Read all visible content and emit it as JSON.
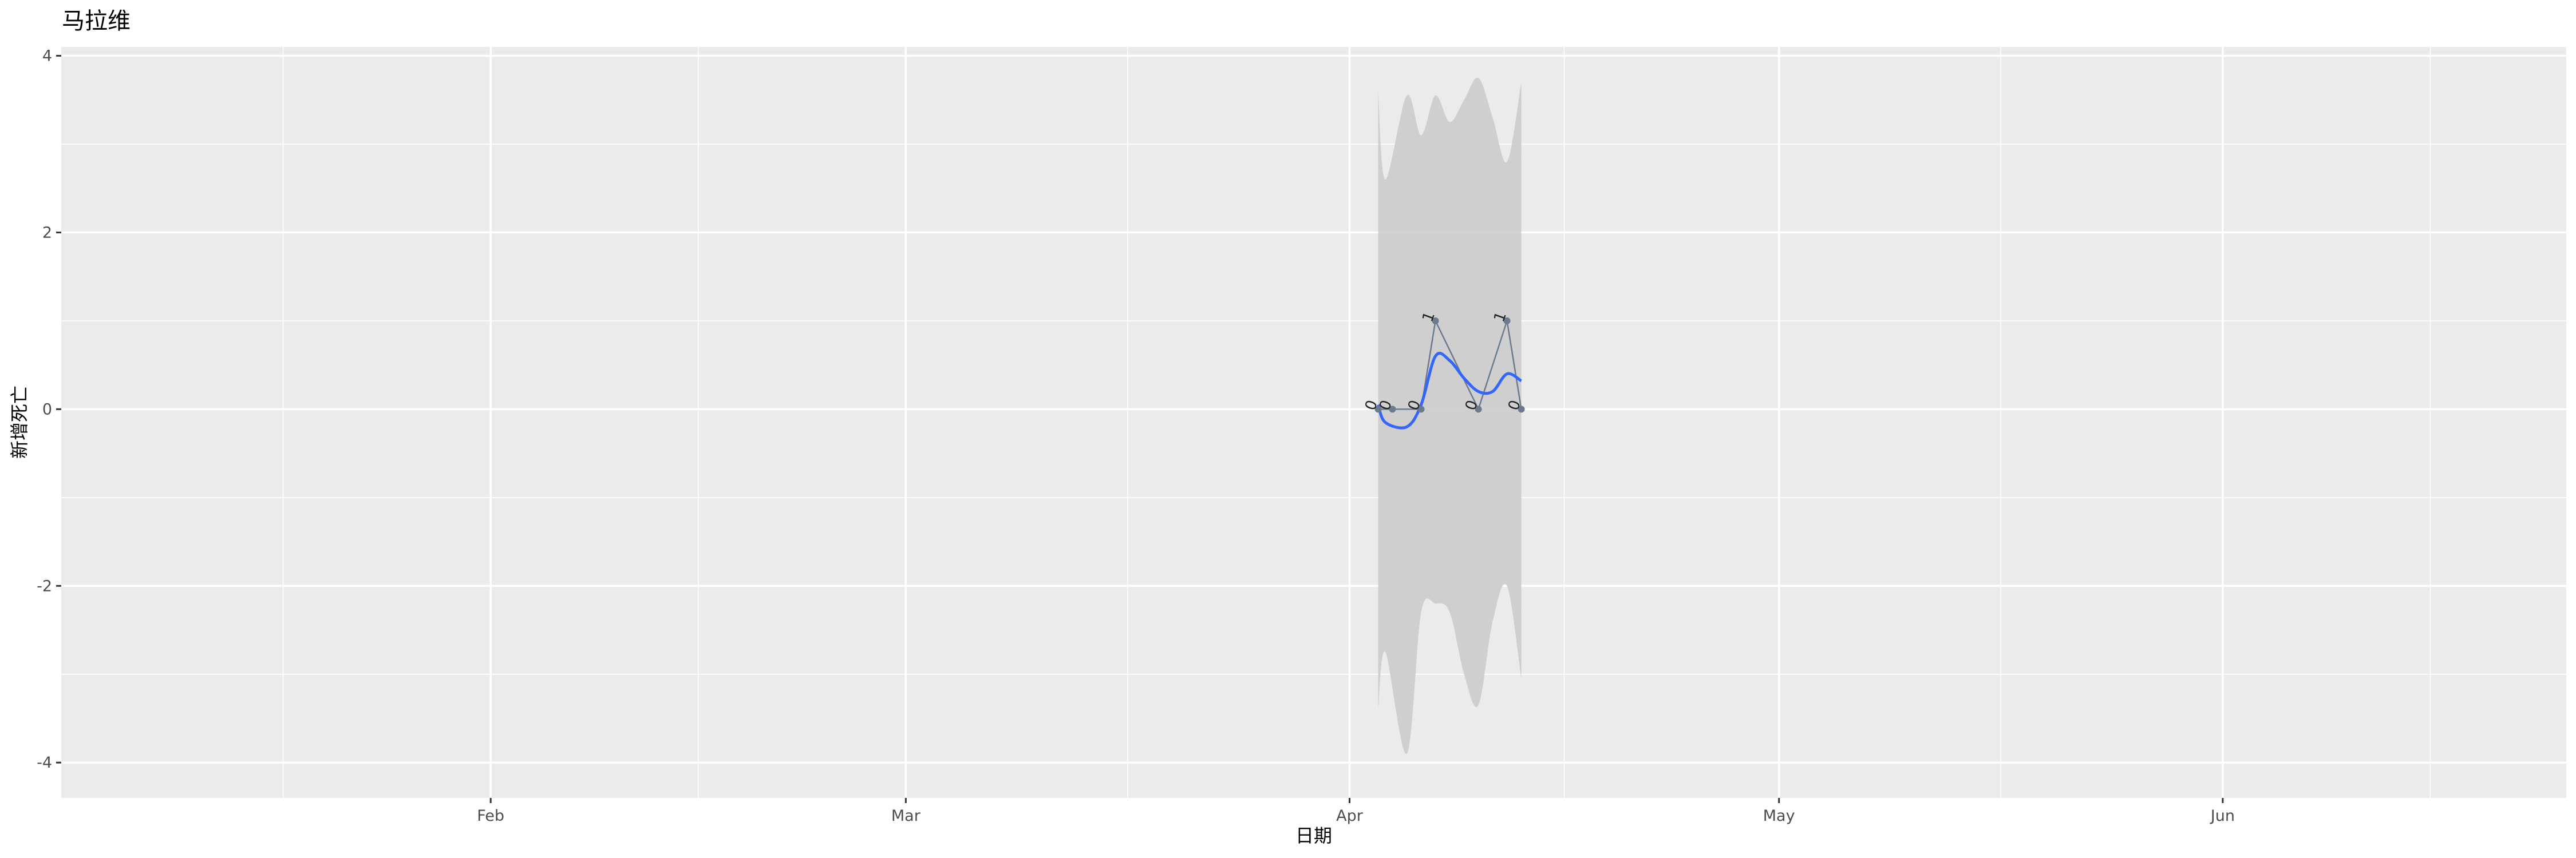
{
  "chart_data": {
    "type": "line",
    "title": "马拉维",
    "xlabel": "日期",
    "ylabel": "新增死亡",
    "x_range": [
      "2020-01-02",
      "2020-06-25"
    ],
    "ylim": [
      -4.4,
      4.1
    ],
    "x_ticks": [
      {
        "date": "2020-02-01",
        "label": "Feb"
      },
      {
        "date": "2020-03-01",
        "label": "Mar"
      },
      {
        "date": "2020-04-01",
        "label": "Apr"
      },
      {
        "date": "2020-05-01",
        "label": "May"
      },
      {
        "date": "2020-06-01",
        "label": "Jun"
      }
    ],
    "y_ticks": [
      -4,
      -2,
      0,
      2,
      4
    ],
    "grid": true,
    "series": [
      {
        "x": [
          "2020-04-03",
          "2020-04-04",
          "2020-04-06",
          "2020-04-07",
          "2020-04-10",
          "2020-04-12",
          "2020-04-13"
        ],
        "values": [
          0,
          0,
          0,
          1,
          0,
          1,
          0
        ],
        "labels": [
          "0",
          "0",
          "0",
          "1",
          "0",
          "1",
          "0"
        ],
        "color": "#6b7a8f"
      }
    ],
    "smooth": {
      "color": "#3366ff",
      "ribbon_color": "#cccccc",
      "x": [
        "2020-04-03",
        "2020-04-03 12:00",
        "2020-04-05",
        "2020-04-06",
        "2020-04-07",
        "2020-04-08",
        "2020-04-09",
        "2020-04-10",
        "2020-04-11",
        "2020-04-12",
        "2020-04-13"
      ],
      "fit": [
        0.05,
        -0.15,
        -0.2,
        0.05,
        0.6,
        0.55,
        0.35,
        0.2,
        0.2,
        0.4,
        0.32
      ],
      "upper": [
        3.6,
        2.6,
        3.55,
        3.1,
        3.55,
        3.25,
        3.5,
        3.75,
        3.3,
        2.8,
        3.7
      ],
      "lower": [
        -3.4,
        -2.75,
        -3.9,
        -2.3,
        -2.2,
        -2.3,
        -3.0,
        -3.35,
        -2.4,
        -2.0,
        -3.05
      ]
    }
  }
}
